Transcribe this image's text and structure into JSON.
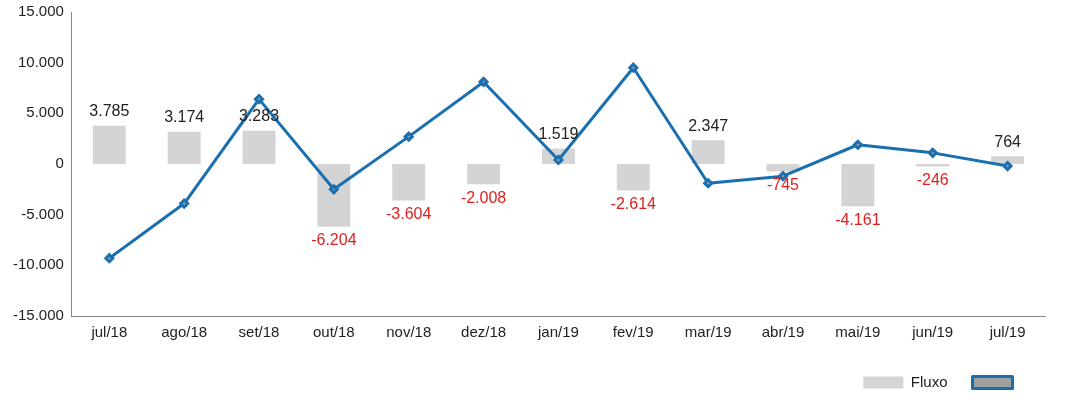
{
  "chart_data": {
    "type": "bar",
    "categories": [
      "jul/18",
      "ago/18",
      "set/18",
      "out/18",
      "nov/18",
      "dez/18",
      "jan/19",
      "fev/19",
      "mar/19",
      "abr/19",
      "mai/19",
      "jun/19",
      "jul/19"
    ],
    "series": [
      {
        "name": "Fluxo",
        "color": "#d4d4d4",
        "values": [
          3785,
          3174,
          3283,
          -6204,
          -3604,
          -2008,
          1519,
          -2614,
          2347,
          -745,
          -4161,
          -246,
          764
        ],
        "value_labels": [
          "3.785",
          "3.174",
          "3.283",
          "-6.204",
          "-3.604",
          "-2.008",
          "1.519",
          "-2.614",
          "2.347",
          "-745",
          "-4.161",
          "-246",
          "764"
        ]
      },
      {
        "type": "line",
        "color": "#1a6fb0",
        "marker": "diamond",
        "values": [
          -9300,
          -3900,
          6400,
          -2500,
          2700,
          8100,
          400,
          9500,
          -1900,
          -1200,
          1900,
          1100,
          -200
        ]
      }
    ],
    "ylim": [
      -15000,
      15000
    ],
    "yticks": [
      {
        "value": -15000,
        "label": "-15.000"
      },
      {
        "value": -10000,
        "label": "-10.000"
      },
      {
        "value": -5000,
        "label": "-5.000"
      },
      {
        "value": 0,
        "label": "0"
      },
      {
        "value": 5000,
        "label": "5.000"
      },
      {
        "value": 10000,
        "label": "10.000"
      },
      {
        "value": 15000,
        "label": "15.000"
      }
    ],
    "grid": false,
    "legend": "bottom right"
  }
}
